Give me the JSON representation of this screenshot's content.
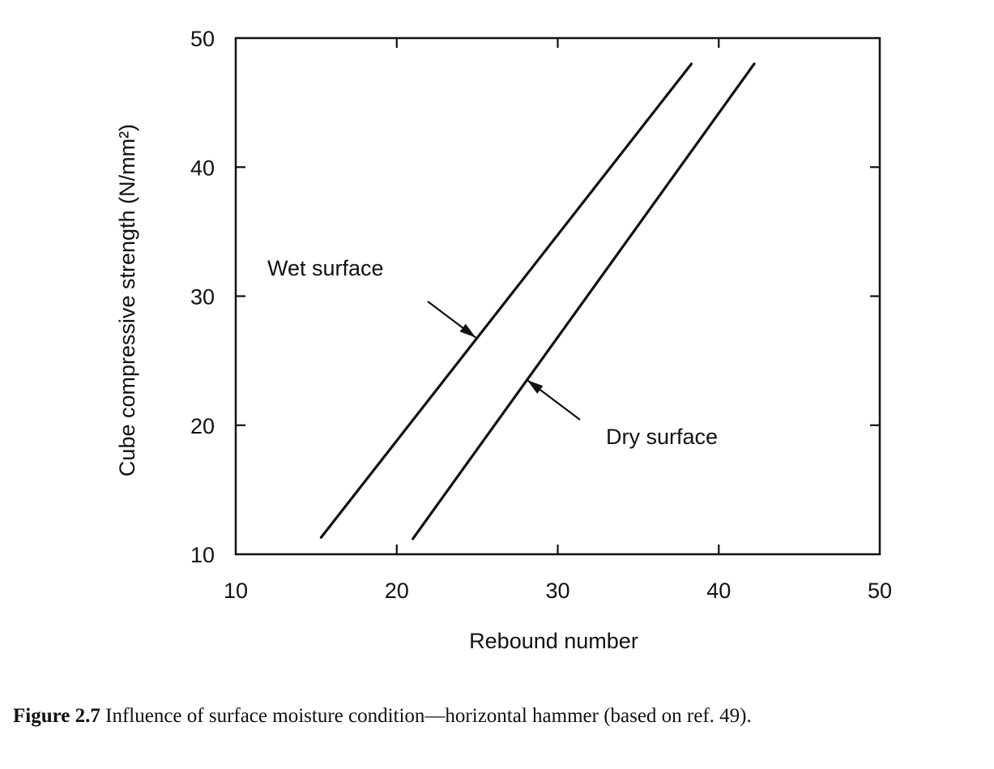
{
  "chart_data": {
    "type": "line",
    "title": "",
    "xlabel": "Rebound number",
    "ylabel": "Cube compressive strength (N/mm²)",
    "xlim": [
      10,
      50
    ],
    "ylim": [
      10,
      50
    ],
    "xticks": [
      10,
      20,
      30,
      40,
      50
    ],
    "yticks": [
      10,
      20,
      30,
      40,
      50
    ],
    "grid": false,
    "series": [
      {
        "name": "Wet surface",
        "x": [
          15.3,
          38.3
        ],
        "y": [
          11.3,
          48.0
        ],
        "label_anchor": [
          24.9,
          26.8
        ]
      },
      {
        "name": "Dry surface",
        "x": [
          21.0,
          42.2
        ],
        "y": [
          11.2,
          48.0
        ],
        "label_anchor": [
          28.1,
          23.5
        ]
      }
    ],
    "colors": {
      "line": "#111111",
      "axis": "#111111"
    }
  },
  "caption": {
    "figure_number": "Figure 2.7",
    "text": " Influence of surface moisture condition—horizontal hammer (based on ref. 49)."
  }
}
